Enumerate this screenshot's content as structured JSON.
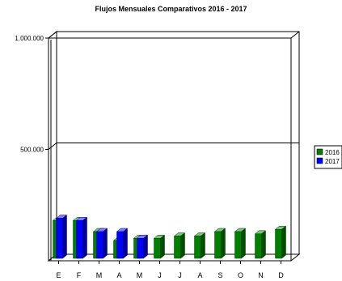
{
  "chart_data": {
    "type": "bar",
    "title": "Flujos Mensuales Comparativos 2016 - 2017",
    "categories": [
      "E",
      "F",
      "M",
      "A",
      "M",
      "J",
      "J",
      "A",
      "S",
      "O",
      "N",
      "D"
    ],
    "series": [
      {
        "name": "2016",
        "color": "#008000",
        "values": [
          170000,
          170000,
          120000,
          80000,
          90000,
          90000,
          100000,
          100000,
          120000,
          120000,
          110000,
          130000
        ]
      },
      {
        "name": "2017",
        "color": "#0000ff",
        "values": [
          180000,
          170000,
          120000,
          120000,
          90000,
          null,
          null,
          null,
          null,
          null,
          null,
          null
        ]
      }
    ],
    "yticks": [
      "1.000.000",
      "500.000"
    ],
    "ylim": [
      0,
      1000000
    ],
    "grid": true,
    "legend_position": "right",
    "style": "3d"
  }
}
